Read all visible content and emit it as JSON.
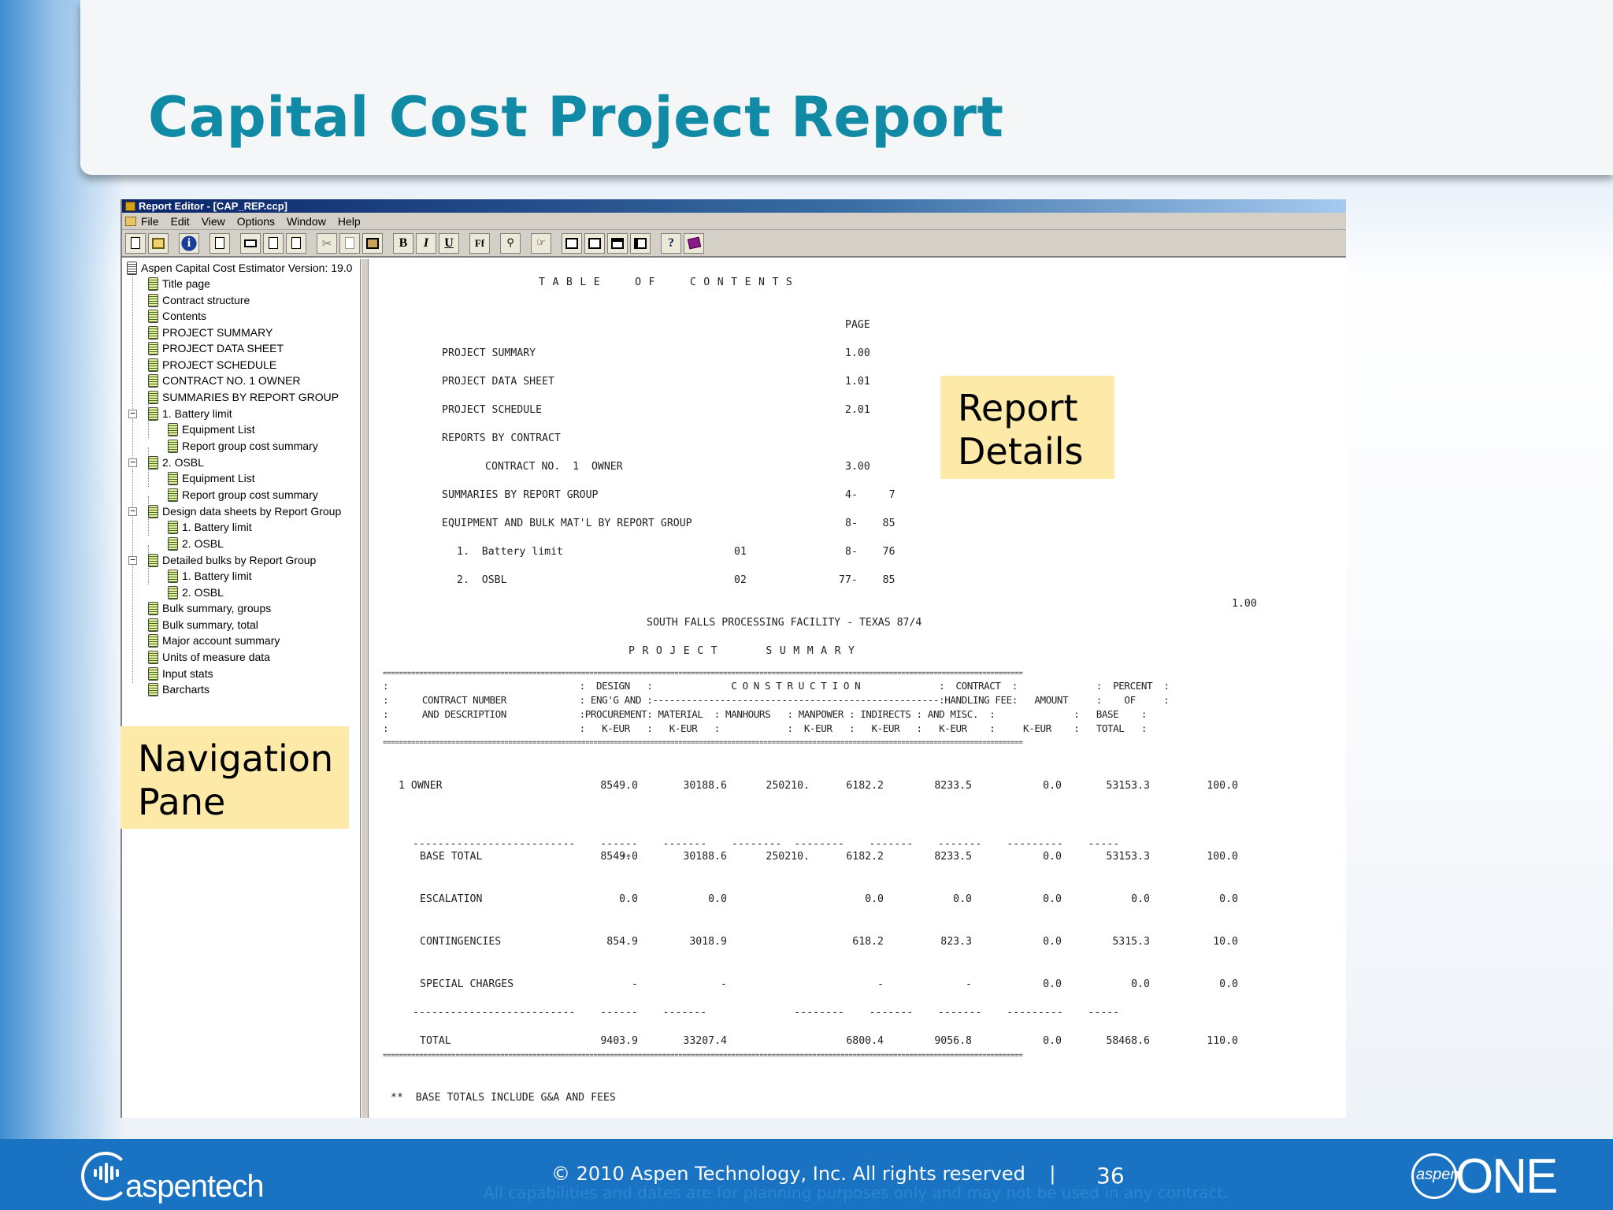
{
  "slide": {
    "title": "Capital Cost Project Report"
  },
  "window": {
    "title": "Report Editor - [CAP_REP.ccp]",
    "menu": [
      "File",
      "Edit",
      "View",
      "Options",
      "Window",
      "Help"
    ]
  },
  "toolbar": {
    "bold": "B",
    "italic": "I",
    "underline": "U",
    "font": "Ff",
    "help": "?"
  },
  "nav": {
    "root": "Aspen Capital Cost Estimator Version: 19.0",
    "items": [
      "Title page",
      "Contract structure",
      "Contents",
      "PROJECT SUMMARY",
      "PROJECT DATA SHEET",
      "PROJECT SCHEDULE",
      "CONTRACT NO.  1  OWNER",
      "SUMMARIES BY REPORT GROUP",
      "1.  Battery limit",
      "Equipment List",
      "Report group cost summary",
      "2.  OSBL",
      "Equipment List",
      "Report group cost summary",
      "Design data sheets by Report Group",
      "1.  Battery limit",
      "2.  OSBL",
      "Detailed bulks by Report Group",
      "1.  Battery limit",
      "2.  OSBL",
      "Bulk summary, groups",
      "Bulk summary, total",
      "Major account summary",
      "Units of measure data",
      "Input stats",
      "Barcharts"
    ]
  },
  "callouts": {
    "report_line1": "Report",
    "report_line2": "Details",
    "nav_line1": "Navigation",
    "nav_line2": "Pane"
  },
  "report": {
    "toc_title": "TABLE  OF  CONTENTS",
    "page_header": "PAGE",
    "toc": [
      {
        "label": "PROJECT SUMMARY",
        "group": "",
        "page": "1.00"
      },
      {
        "label": "PROJECT DATA SHEET",
        "group": "",
        "page": "1.01"
      },
      {
        "label": "PROJECT SCHEDULE",
        "group": "",
        "page": "2.01"
      },
      {
        "label": "REPORTS BY CONTRACT",
        "group": "",
        "page": ""
      },
      {
        "label": "CONTRACT NO.  1  OWNER",
        "group": "",
        "page": "3.00"
      },
      {
        "label": "SUMMARIES BY REPORT GROUP",
        "group": "",
        "page": "4-     7"
      },
      {
        "label": "EQUIPMENT AND BULK MAT'L BY REPORT GROUP",
        "group": "",
        "page": "8-    85"
      },
      {
        "label": "1.  Battery limit",
        "group": "01",
        "page": "8-    76"
      },
      {
        "label": "2.  OSBL",
        "group": "02",
        "page": "77-    85"
      }
    ],
    "page_marker": "1.00",
    "facility": "SOUTH FALLS PROCESSING FACILITY - TEXAS 87/4",
    "summary_title": "PROJECT   SUMMARY",
    "rule_double": "==============================================================================================================================================================",
    "header_lines": [
      ":                                  :  DESIGN   :              C O N S T R U C T I O N              :  CONTRACT  :              :  PERCENT  :",
      ":      CONTRACT NUMBER             : ENG'G AND :---------------------------------------------------:HANDLING FEE:   AMOUNT     :    OF     :",
      ":      AND DESCRIPTION             :PROCUREMENT: MATERIAL  : MANHOURS   : MANPOWER : INDIRECTS : AND MISC.  :              :   BASE    :",
      ":                                  :   K-EUR   :   K-EUR   :            :  K-EUR   :   K-EUR   :   K-EUR    :     K-EUR    :   TOTAL   :"
    ],
    "rows": [
      {
        "label": "1 OWNER",
        "design": "8549.0",
        "material": "30188.6",
        "manhours": "250210.",
        "manpower": "6182.2",
        "indirects": "8233.5",
        "contract": "0.0",
        "amount": "53153.3",
        "percent": "100.0"
      },
      {
        "label": "BASE TOTAL",
        "design": "8549.0",
        "material": "30188.6",
        "manhours": "250210.",
        "manpower": "6182.2",
        "indirects": "8233.5",
        "contract": "0.0",
        "amount": "53153.3",
        "percent": "100.0"
      },
      {
        "label": "ESCALATION",
        "design": "0.0",
        "material": "0.0",
        "manhours": "",
        "manpower": "0.0",
        "indirects": "0.0",
        "contract": "0.0",
        "amount": "0.0",
        "percent": "0.0"
      },
      {
        "label": "CONTINGENCIES",
        "design": "854.9",
        "material": "3018.9",
        "manhours": "",
        "manpower": "618.2",
        "indirects": "823.3",
        "contract": "0.0",
        "amount": "5315.3",
        "percent": "10.0"
      },
      {
        "label": "SPECIAL CHARGES",
        "design": "-",
        "material": "-",
        "manhours": "",
        "manpower": "-",
        "indirects": "-",
        "contract": "0.0",
        "amount": "0.0",
        "percent": "0.0"
      },
      {
        "label": "TOTAL",
        "design": "9403.9",
        "material": "33207.4",
        "manhours": "",
        "manpower": "6800.4",
        "indirects": "9056.8",
        "contract": "0.0",
        "amount": "58468.6",
        "percent": "110.0"
      }
    ],
    "dash_line_1": "--------------------------    ------    -------    --------  --------    -------    -------    ---------    -----",
    "dash_line_2": "--------------------------    ------    -------              --------    -------    -------    ---------    -----",
    "double_star": "**",
    "footnote": "**  BASE TOTALS INCLUDE G&A AND FEES"
  },
  "footer": {
    "logo_text": "aspentech",
    "copyright": "© 2010 Aspen Technology, Inc. All rights reserved",
    "separator": "|",
    "page_number": "36",
    "disclaimer": "All capabilities and dates are for planning purposes only and may not be used in any contract.",
    "brand_small": "aspen",
    "brand_big": "ONE"
  },
  "colors": {
    "title": "#118aa6",
    "footer": "#1a72c2",
    "callout": "#fde9a8",
    "titlebar": "#0a246a"
  }
}
